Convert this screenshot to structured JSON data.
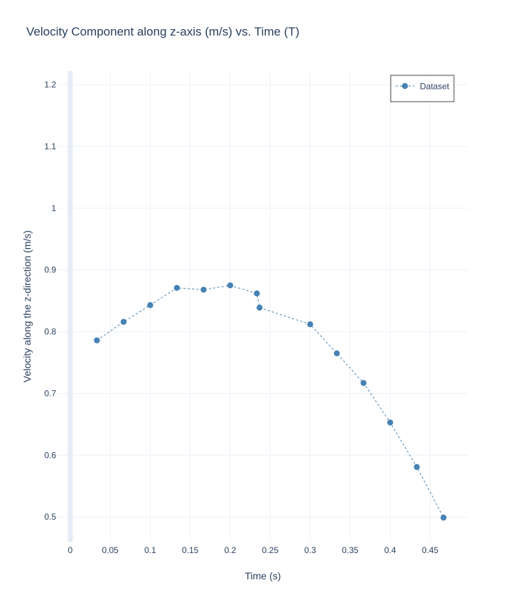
{
  "chart_data": {
    "type": "line",
    "title": "Velocity Component along z-axis (m/s) vs. Time (T)",
    "xlabel": "Time (s)",
    "ylabel": "Velocity along the z-direction (m/s)",
    "xlim": [
      -0.015,
      0.4975
    ],
    "ylim": [
      0.46,
      1.222
    ],
    "x_ticks": [
      0,
      0.05,
      0.1,
      0.15,
      0.2,
      0.25,
      0.3,
      0.35,
      0.4,
      0.45
    ],
    "x_tick_labels": [
      "0",
      "0.05",
      "0.1",
      "0.15",
      "0.2",
      "0.25",
      "0.3",
      "0.35",
      "0.4",
      "0.45"
    ],
    "y_ticks": [
      0.5,
      0.6,
      0.7,
      0.8,
      0.9,
      1.0,
      1.1,
      1.2
    ],
    "y_tick_labels": [
      "0.5",
      "0.6",
      "0.7",
      "0.8",
      "0.9",
      "1",
      "1.1",
      "1.2"
    ],
    "grid": true,
    "legend_position": "top-right",
    "series": [
      {
        "name": "Dataset",
        "color": "#4682b4",
        "line_style": "dashed",
        "marker": "circle",
        "x": [
          0.0333,
          0.0667,
          0.1,
          0.1333,
          0.1667,
          0.2,
          0.2333,
          0.2367,
          0.3,
          0.3333,
          0.3667,
          0.4,
          0.4333,
          0.4667
        ],
        "y": [
          0.786,
          0.816,
          0.843,
          0.871,
          0.868,
          0.875,
          0.862,
          0.839,
          0.812,
          0.765,
          0.717,
          0.653,
          0.581,
          0.499
        ]
      }
    ]
  }
}
